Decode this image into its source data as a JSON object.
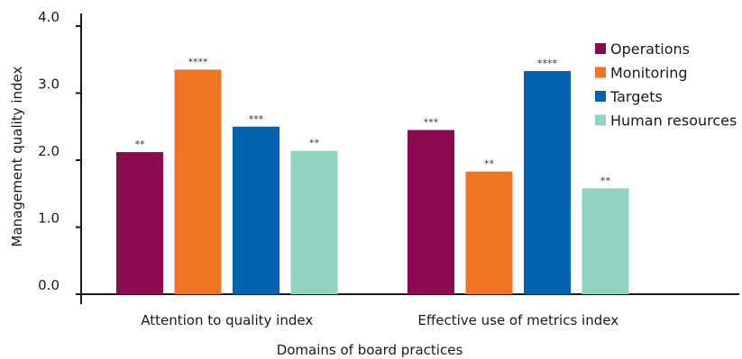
{
  "chart_data": {
    "type": "bar",
    "title": "",
    "xlabel": "Domains of board practices",
    "ylabel": "Management quality index",
    "ylim": [
      0,
      4
    ],
    "yticks": [
      "0.0",
      "1.0",
      "2.0",
      "3.0",
      "4.0"
    ],
    "categories": [
      "Attention to quality index",
      "Effective use of metrics index"
    ],
    "series": [
      {
        "name": "Operations",
        "color": "#8b0a50",
        "values": [
          2.12,
          2.45
        ],
        "significance": [
          "**",
          "***"
        ]
      },
      {
        "name": "Monitoring",
        "color": "#f07323",
        "values": [
          3.35,
          1.83
        ],
        "significance": [
          "****",
          "**"
        ]
      },
      {
        "name": "Targets",
        "color": "#0063b2",
        "values": [
          2.5,
          3.33
        ],
        "significance": [
          "***",
          "****"
        ]
      },
      {
        "name": "Human resources",
        "color": "#8fd3c0",
        "values": [
          2.14,
          1.58
        ],
        "significance": [
          "**",
          "**"
        ]
      }
    ],
    "legend_position": "top-right",
    "grid": false
  }
}
